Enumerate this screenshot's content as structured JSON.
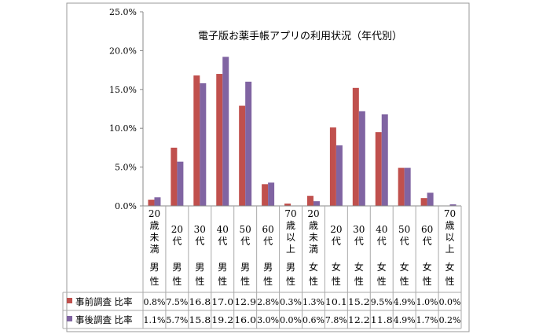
{
  "chart_data": {
    "type": "bar",
    "title": "電子版お薬手帳アプリの利用状況（年代別）",
    "categories": [
      [
        "20",
        "歳",
        "未",
        "満",
        "男",
        "性"
      ],
      [
        "20",
        "代",
        "男",
        "性"
      ],
      [
        "30",
        "代",
        "男",
        "性"
      ],
      [
        "40",
        "代",
        "男",
        "性"
      ],
      [
        "50",
        "代",
        "男",
        "性"
      ],
      [
        "60",
        "代",
        "男",
        "性"
      ],
      [
        "70",
        "歳",
        "以",
        "上",
        "男",
        "性"
      ],
      [
        "20",
        "歳",
        "未",
        "満",
        "女",
        "性"
      ],
      [
        "20",
        "代",
        "女",
        "性"
      ],
      [
        "30",
        "代",
        "女",
        "性"
      ],
      [
        "40",
        "代",
        "女",
        "性"
      ],
      [
        "50",
        "代",
        "女",
        "性"
      ],
      [
        "60",
        "代",
        "女",
        "性"
      ],
      [
        "70",
        "歳",
        "以",
        "上",
        "女",
        "性"
      ]
    ],
    "yticks": [
      "0.0%",
      "5.0%",
      "10.0%",
      "15.0%",
      "20.0%",
      "25.0%"
    ],
    "ylim": [
      0,
      25
    ],
    "grid": false,
    "legend_placement": "data-table",
    "series": [
      {
        "name": "事前調査 比率",
        "color": "#c0504d",
        "values": [
          0.8,
          7.5,
          16.8,
          17.0,
          12.9,
          2.8,
          0.3,
          1.3,
          10.1,
          15.2,
          9.5,
          4.9,
          1.0,
          0.0
        ],
        "labels": [
          "0.8%",
          "7.5%",
          "16.8",
          "17.0",
          "12.9",
          "2.8%",
          "0.3%",
          "1.3%",
          "10.1",
          "15.2",
          "9.5%",
          "4.9%",
          "1.0%",
          "0.0%"
        ]
      },
      {
        "name": "事後調査 比率",
        "color": "#8064a2",
        "values": [
          1.1,
          5.7,
          15.8,
          19.2,
          16.0,
          3.0,
          0.0,
          0.6,
          7.8,
          12.2,
          11.8,
          4.9,
          1.7,
          0.2
        ],
        "labels": [
          "1.1%",
          "5.7%",
          "15.8",
          "19.2",
          "16.0",
          "3.0%",
          "0.0%",
          "0.6%",
          "7.8%",
          "12.2",
          "11.8",
          "4.9%",
          "1.7%",
          "0.2%"
        ]
      }
    ]
  }
}
